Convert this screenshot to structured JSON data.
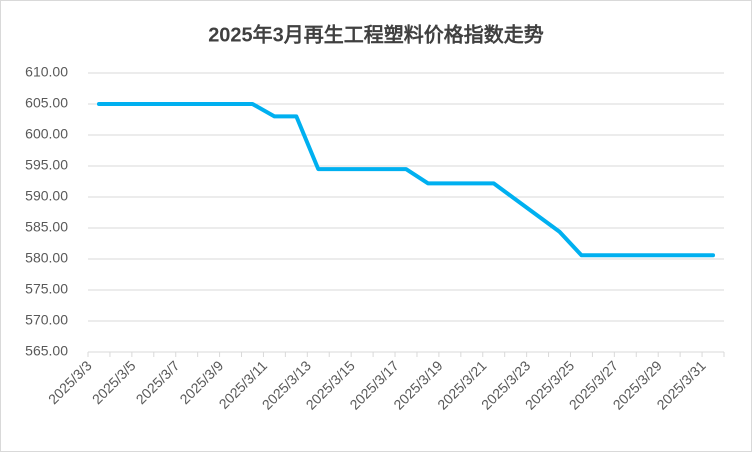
{
  "chart_data": {
    "type": "line",
    "title": "2025年3月再生工程塑料价格指数走势",
    "categories": [
      "2025/3/3",
      null,
      "2025/3/5",
      null,
      "2025/3/7",
      null,
      "2025/3/9",
      null,
      "2025/3/11",
      null,
      "2025/3/13",
      null,
      "2025/3/15",
      null,
      "2025/3/17",
      null,
      "2025/3/19",
      null,
      "2025/3/21",
      null,
      "2025/3/23",
      null,
      "2025/3/25",
      null,
      "2025/3/27",
      null,
      "2025/3/29",
      null,
      "2025/3/31"
    ],
    "values": [
      605,
      605,
      605,
      605,
      605,
      605,
      605,
      605,
      603,
      603,
      594.5,
      594.5,
      594.5,
      594.5,
      594.5,
      592.2,
      592.2,
      592.2,
      592.2,
      589.6,
      587,
      584.4,
      580.6,
      580.6,
      580.6,
      580.6,
      580.6,
      580.6,
      580.6
    ],
    "color": "#00b0f0",
    "ylim": [
      565,
      610
    ],
    "yticks": [
      {
        "value": 565,
        "label": "565.00"
      },
      {
        "value": 570,
        "label": "570.00"
      },
      {
        "value": 575,
        "label": "575.00"
      },
      {
        "value": 580,
        "label": "580.00"
      },
      {
        "value": 585,
        "label": "585.00"
      },
      {
        "value": 590,
        "label": "590.00"
      },
      {
        "value": 595,
        "label": "595.00"
      },
      {
        "value": 600,
        "label": "600.00"
      },
      {
        "value": 605,
        "label": "605.00"
      },
      {
        "value": 610,
        "label": "610.00"
      }
    ],
    "grid": true
  }
}
